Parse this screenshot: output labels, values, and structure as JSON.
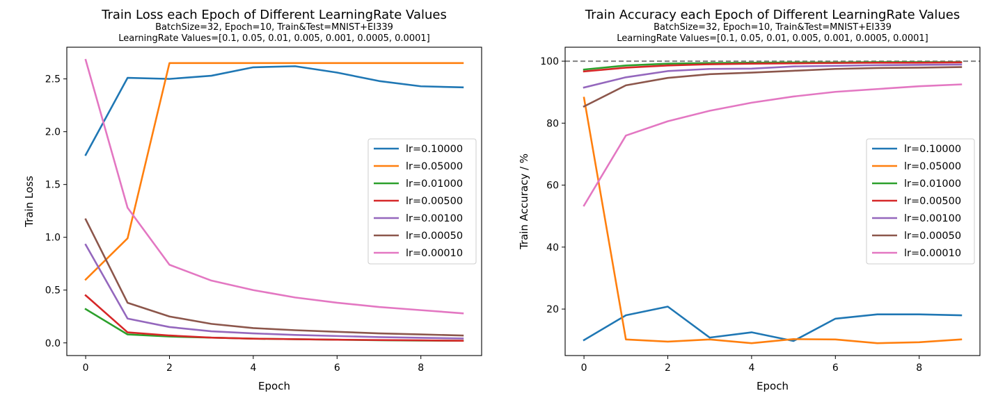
{
  "chart_data": [
    {
      "type": "line",
      "title": "Train Loss each Epoch of Different LearningRate Values",
      "subtitle_line1": "BatchSize=32, Epoch=10, Train&Test=MNIST+EI339",
      "subtitle_line2": "LearningRate Values=[0.1, 0.05, 0.01, 0.005, 0.001, 0.0005, 0.0001]",
      "xlabel": "Epoch",
      "ylabel": "Train Loss",
      "xlim": [
        -0.45,
        9.45
      ],
      "ylim": [
        -0.12,
        2.8
      ],
      "xticks": [
        0,
        2,
        4,
        6,
        8
      ],
      "xtick_labels": [
        "0",
        "2",
        "4",
        "6",
        "8"
      ],
      "yticks": [
        0.0,
        0.5,
        1.0,
        1.5,
        2.0,
        2.5
      ],
      "ytick_labels": [
        "0.0",
        "0.5",
        "1.0",
        "1.5",
        "2.0",
        "2.5"
      ],
      "grid": false,
      "legend_position": "center-right",
      "x": [
        0,
        1,
        2,
        3,
        4,
        5,
        6,
        7,
        8,
        9
      ],
      "series": [
        {
          "name": "lr=0.10000",
          "color": "#1f77b4",
          "values": [
            1.78,
            2.51,
            2.5,
            2.53,
            2.61,
            2.62,
            2.56,
            2.48,
            2.43,
            2.42
          ]
        },
        {
          "name": "lr=0.05000",
          "color": "#ff7f0e",
          "values": [
            0.6,
            0.99,
            2.65,
            2.65,
            2.65,
            2.65,
            2.65,
            2.65,
            2.65,
            2.65
          ]
        },
        {
          "name": "lr=0.01000",
          "color": "#2ca02c",
          "values": [
            0.32,
            0.08,
            0.06,
            0.05,
            0.04,
            0.035,
            0.03,
            0.025,
            0.022,
            0.02
          ]
        },
        {
          "name": "lr=0.00500",
          "color": "#d62728",
          "values": [
            0.45,
            0.1,
            0.07,
            0.05,
            0.04,
            0.035,
            0.03,
            0.027,
            0.024,
            0.02
          ]
        },
        {
          "name": "lr=0.00100",
          "color": "#9467bd",
          "values": [
            0.93,
            0.23,
            0.15,
            0.11,
            0.09,
            0.075,
            0.065,
            0.055,
            0.048,
            0.042
          ]
        },
        {
          "name": "lr=0.00050",
          "color": "#8c564b",
          "values": [
            1.17,
            0.38,
            0.25,
            0.18,
            0.14,
            0.12,
            0.105,
            0.09,
            0.08,
            0.07
          ]
        },
        {
          "name": "lr=0.00010",
          "color": "#e377c2",
          "values": [
            2.68,
            1.28,
            0.74,
            0.59,
            0.5,
            0.43,
            0.38,
            0.34,
            0.31,
            0.28
          ]
        }
      ]
    },
    {
      "type": "line",
      "title": "Train Accuracy each Epoch of Different LearningRate Values",
      "subtitle_line1": "BatchSize=32, Epoch=10, Train&Test=MNIST+EI339",
      "subtitle_line2": "LearningRate Values=[0.1, 0.05, 0.01, 0.005, 0.001, 0.0005, 0.0001]",
      "xlabel": "Epoch",
      "ylabel": "Train Accuracy / %",
      "xlim": [
        -0.45,
        9.45
      ],
      "ylim": [
        5.0,
        104.5
      ],
      "xticks": [
        0,
        2,
        4,
        6,
        8
      ],
      "xtick_labels": [
        "0",
        "2",
        "4",
        "6",
        "8"
      ],
      "yticks": [
        20,
        40,
        60,
        80,
        100
      ],
      "ytick_labels": [
        "20",
        "40",
        "60",
        "80",
        "100"
      ],
      "grid": false,
      "reference_line": {
        "y": 100,
        "color": "#808080",
        "style": "dashed"
      },
      "legend_position": "center-right",
      "x": [
        0,
        1,
        2,
        3,
        4,
        5,
        6,
        7,
        8,
        9
      ],
      "series": [
        {
          "name": "lr=0.10000",
          "color": "#1f77b4",
          "values": [
            10.0,
            18.0,
            20.8,
            10.8,
            12.5,
            9.7,
            16.9,
            18.3,
            18.3,
            18.0
          ]
        },
        {
          "name": "lr=0.05000",
          "color": "#ff7f0e",
          "values": [
            88.2,
            10.2,
            9.5,
            10.2,
            9.0,
            10.3,
            10.2,
            9.0,
            9.3,
            10.2
          ]
        },
        {
          "name": "lr=0.01000",
          "color": "#2ca02c",
          "values": [
            97.3,
            98.6,
            99.2,
            99.4,
            99.5,
            99.6,
            99.6,
            99.7,
            99.7,
            99.7
          ]
        },
        {
          "name": "lr=0.00500",
          "color": "#d62728",
          "values": [
            96.7,
            97.9,
            98.6,
            99.0,
            99.2,
            99.3,
            99.4,
            99.5,
            99.5,
            99.6
          ]
        },
        {
          "name": "lr=0.00100",
          "color": "#9467bd",
          "values": [
            91.5,
            94.8,
            96.8,
            97.5,
            97.6,
            98.3,
            98.5,
            98.7,
            98.8,
            98.9
          ]
        },
        {
          "name": "lr=0.00050",
          "color": "#8c564b",
          "values": [
            85.4,
            92.2,
            94.6,
            95.8,
            96.3,
            96.9,
            97.5,
            97.8,
            97.9,
            98.1
          ]
        },
        {
          "name": "lr=0.00010",
          "color": "#e377c2",
          "values": [
            53.4,
            76.0,
            80.6,
            84.0,
            86.6,
            88.6,
            90.1,
            91.0,
            91.9,
            92.5
          ]
        }
      ]
    }
  ]
}
